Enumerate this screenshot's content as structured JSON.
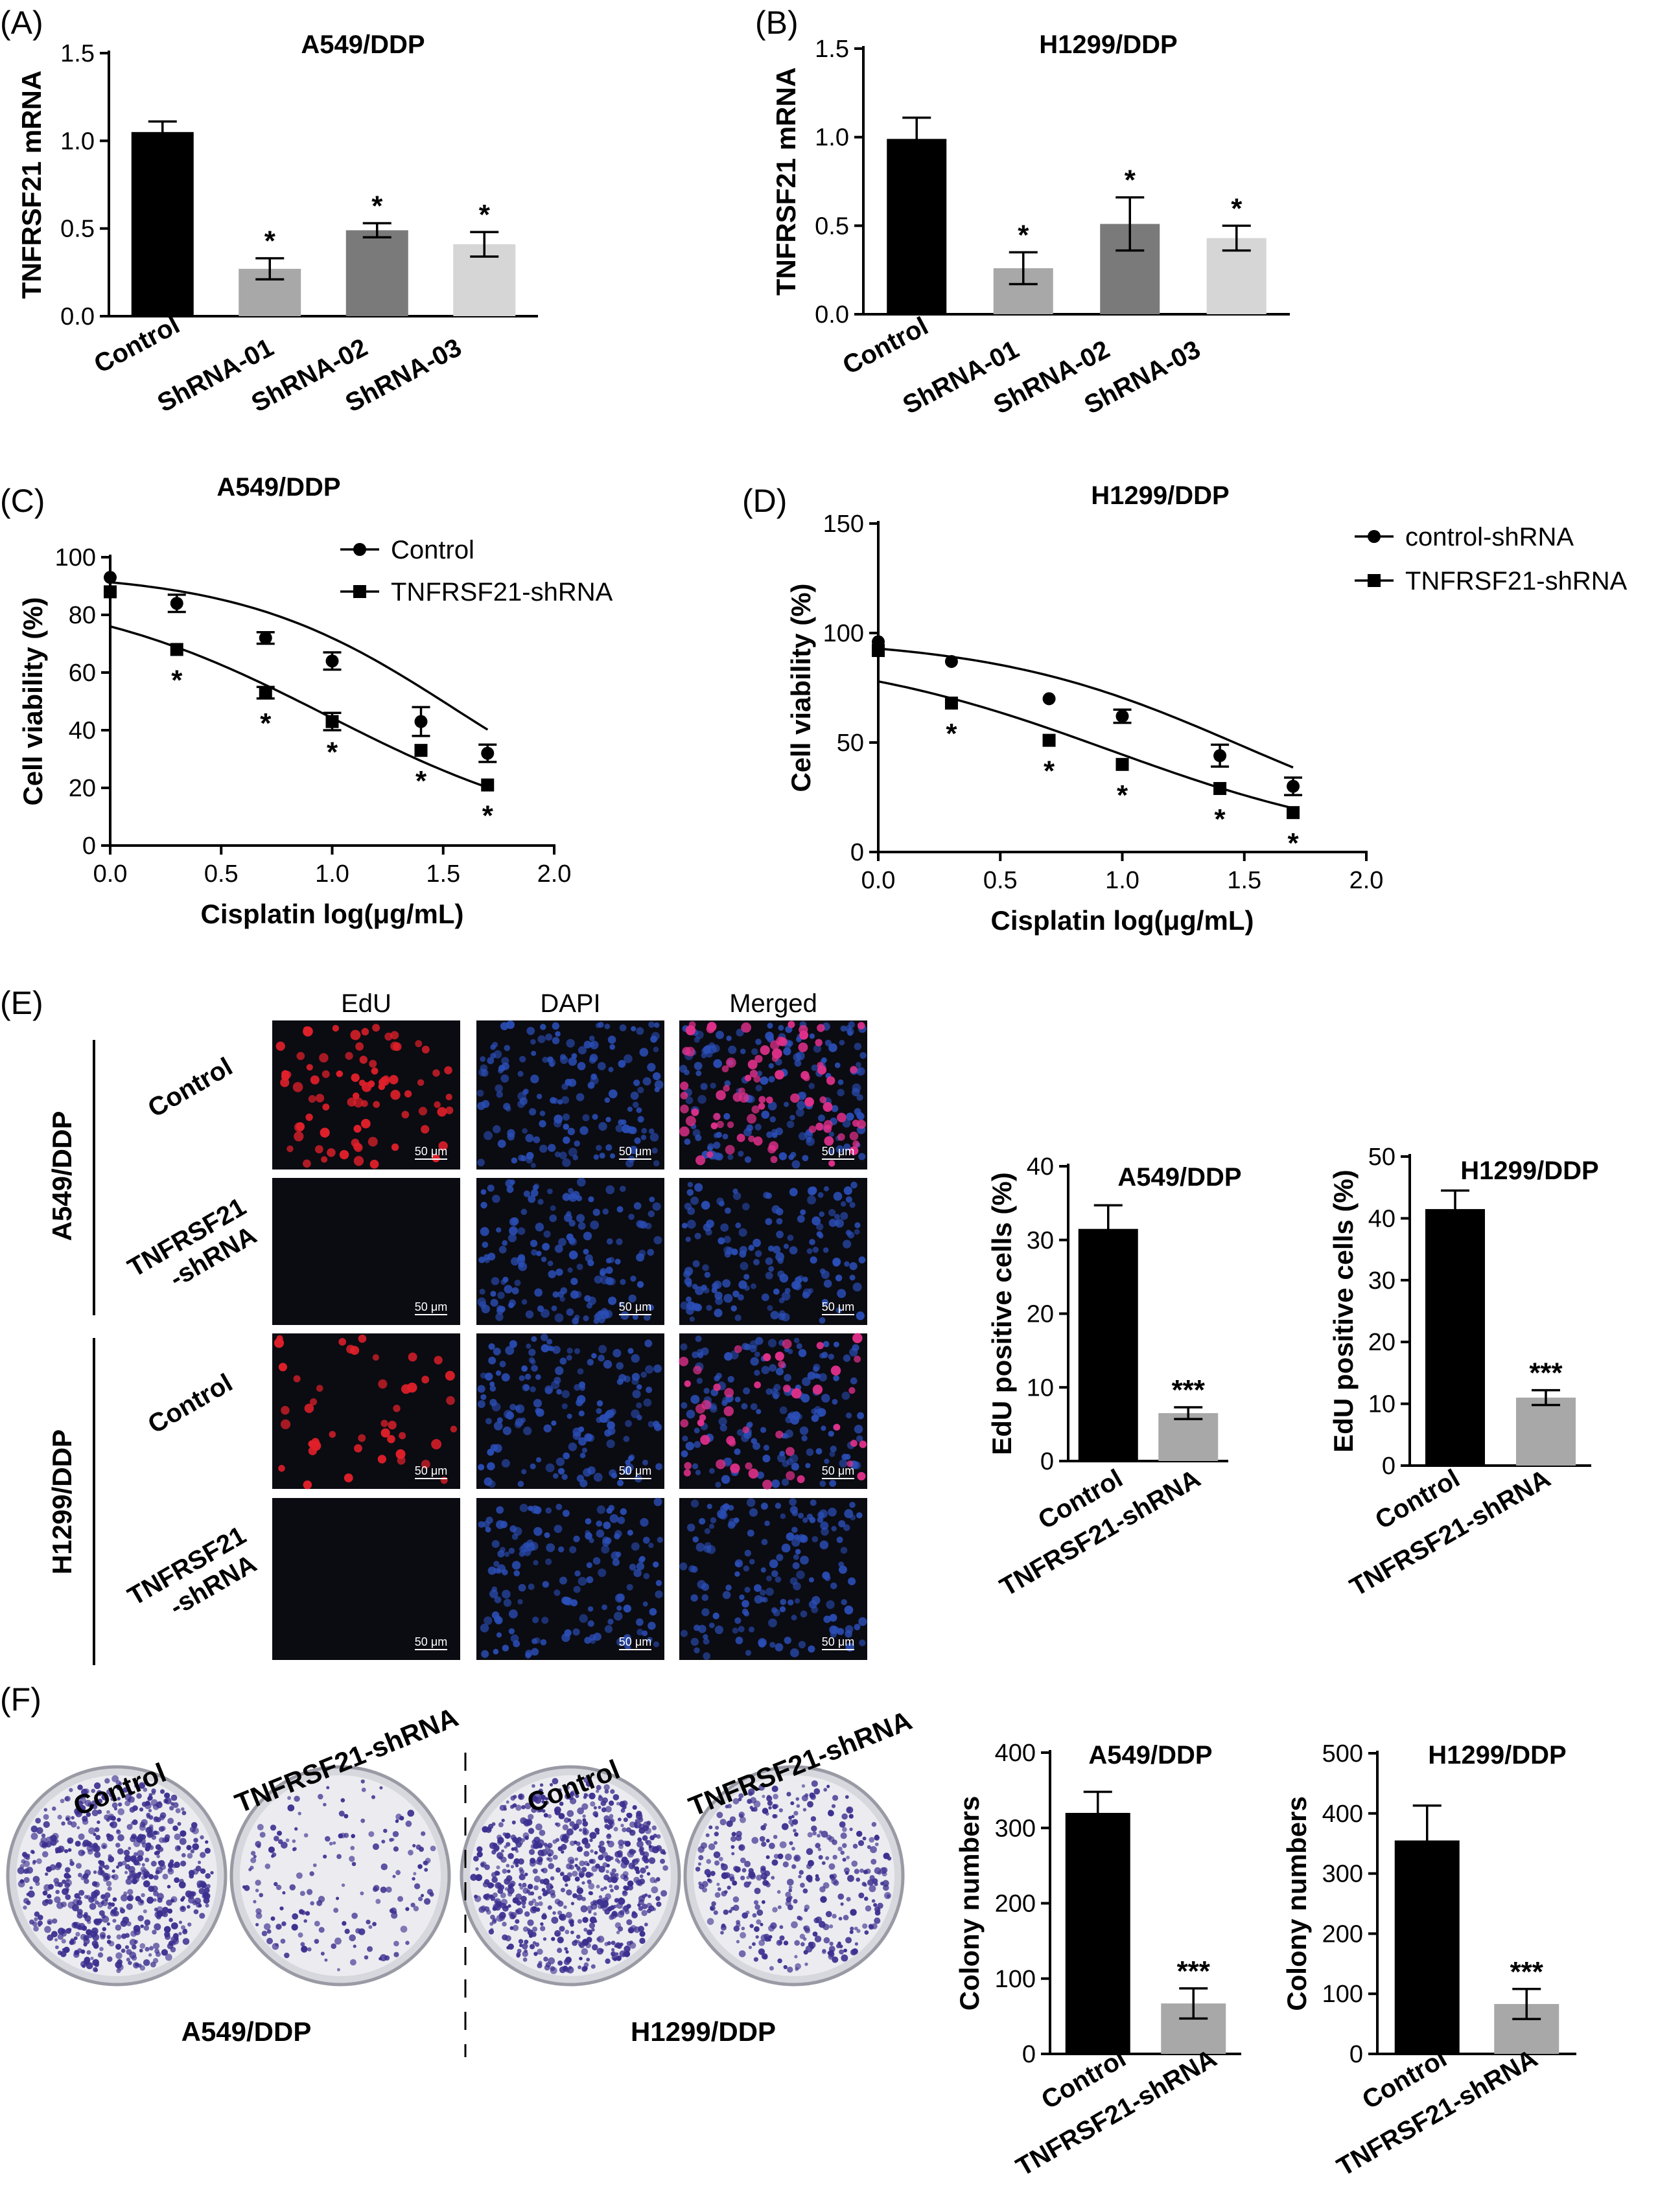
{
  "panels": {
    "A": "(A)",
    "B": "(B)",
    "C": "(C)",
    "D": "(D)",
    "E": "(E)",
    "F": "(F)"
  },
  "colors": {
    "black": "#000000",
    "dark_gray": "#7a7a7a",
    "mid_gray": "#a8a8a8",
    "light_gray": "#d6d6d6",
    "micro_bg": "#0b0b12",
    "dapi_blue": "#2b4fb8",
    "edu_red": "#e0202a",
    "plate_purple": "#3b2f8f"
  },
  "chart_data": [
    {
      "id": "A",
      "type": "bar",
      "title": "A549/DDP",
      "ylabel": "TNFRSF21 mRNA",
      "xlabel": "",
      "ylim": [
        0,
        1.5
      ],
      "yticks": [
        0.0,
        0.5,
        1.0,
        1.5
      ],
      "tick_fmt": 1,
      "categories": [
        "Control",
        "ShRNA-01",
        "ShRNA-02",
        "ShRNA-03"
      ],
      "values": [
        1.05,
        0.27,
        0.49,
        0.41
      ],
      "errors": [
        0.06,
        0.06,
        0.04,
        0.07
      ],
      "significance": [
        "",
        "*",
        "*",
        "*"
      ],
      "bar_colors": [
        "#000000",
        "#a8a8a8",
        "#7a7a7a",
        "#d6d6d6"
      ]
    },
    {
      "id": "B",
      "type": "bar",
      "title": "H1299/DDP",
      "ylabel": "TNFRSF21 mRNA",
      "xlabel": "",
      "ylim": [
        0,
        1.5
      ],
      "yticks": [
        0.0,
        0.5,
        1.0,
        1.5
      ],
      "tick_fmt": 1,
      "categories": [
        "Control",
        "ShRNA-01",
        "ShRNA-02",
        "ShRNA-03"
      ],
      "values": [
        0.99,
        0.26,
        0.51,
        0.43
      ],
      "errors": [
        0.12,
        0.09,
        0.15,
        0.07
      ],
      "significance": [
        "",
        "*",
        "*",
        "*"
      ],
      "bar_colors": [
        "#000000",
        "#a8a8a8",
        "#7a7a7a",
        "#d6d6d6"
      ]
    },
    {
      "id": "C",
      "type": "line",
      "title": "A549/DDP",
      "ylabel": "Cell viability (%)",
      "xlabel": "Cisplatin log(μg/mL)",
      "xlim": [
        0,
        2.0
      ],
      "ylim": [
        0,
        100
      ],
      "xticks": [
        0.0,
        0.5,
        1.0,
        1.5,
        2.0
      ],
      "yticks": [
        0,
        20,
        40,
        60,
        80,
        100
      ],
      "x": [
        0,
        0.3,
        0.7,
        1.0,
        1.4,
        1.7
      ],
      "series": [
        {
          "name": "Control",
          "marker": "circle",
          "values": [
            93,
            84,
            72,
            64,
            43,
            32
          ],
          "errors": [
            0,
            3,
            2,
            3,
            5,
            3
          ],
          "fit_top": 95,
          "fit_bottom": 0,
          "fit_ec50": 1.55,
          "fit_slope": 0.9
        },
        {
          "name": "TNFRSF21-shRNA",
          "marker": "square",
          "values": [
            88,
            68,
            53,
            43,
            33,
            21
          ],
          "errors": [
            0,
            0,
            2,
            3,
            0,
            0
          ],
          "significance": [
            "",
            "*",
            "*",
            "*",
            "*",
            "*"
          ],
          "fit_top": 90,
          "fit_bottom": 0,
          "fit_ec50": 0.98,
          "fit_slope": 0.75
        }
      ]
    },
    {
      "id": "D",
      "type": "line",
      "title": "H1299/DDP",
      "ylabel": "Cell viability (%)",
      "xlabel": "Cisplatin log(μg/mL)",
      "xlim": [
        0,
        2.0
      ],
      "ylim": [
        0,
        150
      ],
      "xticks": [
        0.0,
        0.5,
        1.0,
        1.5,
        2.0
      ],
      "yticks": [
        0,
        50,
        100,
        150
      ],
      "x": [
        0,
        0.3,
        0.7,
        1.0,
        1.4,
        1.7
      ],
      "series": [
        {
          "name": "control-shRNA",
          "marker": "circle",
          "values": [
            96,
            87,
            70,
            62,
            44,
            30
          ],
          "errors": [
            0,
            0,
            0,
            3,
            5,
            4
          ],
          "fit_top": 98,
          "fit_bottom": 0,
          "fit_ec50": 1.48,
          "fit_slope": 0.85
        },
        {
          "name": "TNFRSF21-shRNA",
          "marker": "square",
          "values": [
            92,
            68,
            51,
            40,
            29,
            18
          ],
          "errors": [
            0,
            0,
            0,
            0,
            0,
            0
          ],
          "significance": [
            "",
            "*",
            "*",
            "*",
            "*",
            "*"
          ],
          "fit_top": 93,
          "fit_bottom": 0,
          "fit_ec50": 0.95,
          "fit_slope": 0.75
        }
      ]
    },
    {
      "id": "E1",
      "type": "bar",
      "title": "A549/DDP",
      "ylabel": "EdU positive cells (%)",
      "xlabel": "",
      "ylim": [
        0,
        40
      ],
      "yticks": [
        0,
        10,
        20,
        30,
        40
      ],
      "tick_fmt": 0,
      "categories": [
        "Control",
        "TNFRSF21-shRNA"
      ],
      "values": [
        31.5,
        6.5
      ],
      "errors": [
        3.2,
        0.8
      ],
      "significance": [
        "",
        "***"
      ],
      "bar_colors": [
        "#000000",
        "#a8a8a8"
      ]
    },
    {
      "id": "E2",
      "type": "bar",
      "title": "H1299/DDP",
      "ylabel": "EdU positive cells (%)",
      "xlabel": "",
      "ylim": [
        0,
        50
      ],
      "yticks": [
        0,
        10,
        20,
        30,
        40,
        50
      ],
      "tick_fmt": 0,
      "categories": [
        "Control",
        "TNFRSF21-shRNA"
      ],
      "values": [
        41.5,
        11.0
      ],
      "errors": [
        3.0,
        1.2
      ],
      "significance": [
        "",
        "***"
      ],
      "bar_colors": [
        "#000000",
        "#a8a8a8"
      ]
    },
    {
      "id": "F1",
      "type": "bar",
      "title": "A549/DDP",
      "ylabel": "Colony numbers",
      "xlabel": "",
      "ylim": [
        0,
        400
      ],
      "yticks": [
        0,
        100,
        200,
        300,
        400
      ],
      "tick_fmt": 0,
      "categories": [
        "Control",
        "TNFRSF21-shRNA"
      ],
      "values": [
        320,
        67
      ],
      "errors": [
        28,
        20
      ],
      "significance": [
        "",
        "***"
      ],
      "bar_colors": [
        "#000000",
        "#a8a8a8"
      ]
    },
    {
      "id": "F2",
      "type": "bar",
      "title": "H1299/DDP",
      "ylabel": "Colony numbers",
      "xlabel": "",
      "ylim": [
        0,
        500
      ],
      "yticks": [
        0,
        100,
        200,
        300,
        400,
        500
      ],
      "tick_fmt": 0,
      "categories": [
        "Control",
        "TNFRSF21-shRNA"
      ],
      "values": [
        355,
        83
      ],
      "errors": [
        58,
        25
      ],
      "significance": [
        "",
        "***"
      ],
      "bar_colors": [
        "#000000",
        "#a8a8a8"
      ]
    }
  ],
  "micrographs": {
    "columns": [
      "EdU",
      "DAPI",
      "Merged"
    ],
    "cell_lines": [
      "A549/DDP",
      "H1299/DDP"
    ],
    "rows": [
      "Control",
      "TNFRSF21\n-shRNA",
      "Control",
      "TNFRSF21\n-shRNA"
    ],
    "scale_bar": "50 μm"
  },
  "plates": {
    "labels": [
      "Control",
      "TNFRSF21-shRNA",
      "Control",
      "TNFRSF21-shRNA"
    ],
    "cell_lines": [
      "A549/DDP",
      "H1299/DDP"
    ]
  }
}
